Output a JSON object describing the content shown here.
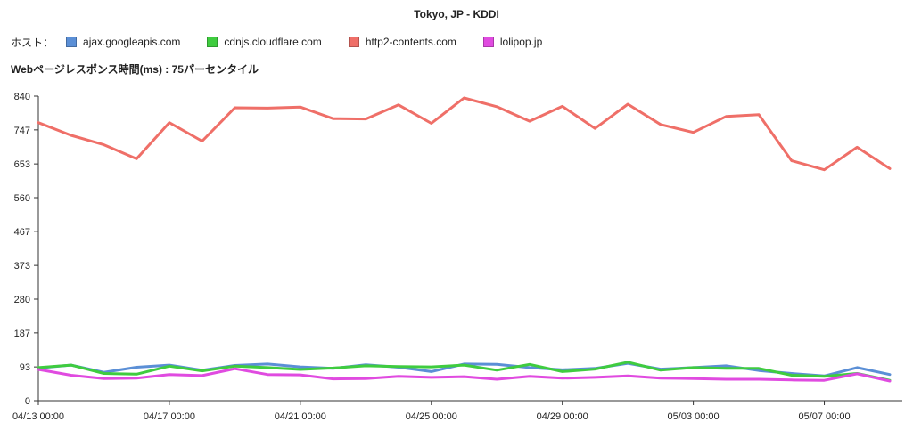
{
  "chart_data": {
    "type": "line",
    "title": "Tokyo, JP - KDDI",
    "legend_prefix": "ホスト：",
    "ylabel": "Webページレスポンス時間(ms) : 75パーセンタイル",
    "xlabel": "",
    "ylim": [
      0,
      840
    ],
    "yticks": [
      0,
      93,
      187,
      280,
      373,
      467,
      560,
      653,
      747,
      840
    ],
    "xticks": [
      "04/13 00:00",
      "04/17 00:00",
      "04/21 00:00",
      "04/25 00:00",
      "04/29 00:00",
      "05/03 00:00",
      "05/07 00:00"
    ],
    "xtick_days": [
      0,
      4,
      8,
      12,
      16,
      20,
      24
    ],
    "x": [
      "04/13",
      "04/14",
      "04/15",
      "04/16",
      "04/17",
      "04/18",
      "04/19",
      "04/20",
      "04/21",
      "04/22",
      "04/23",
      "04/24",
      "04/25",
      "04/26",
      "04/27",
      "04/28",
      "04/29",
      "04/30",
      "05/01",
      "05/02",
      "05/03",
      "05/04",
      "05/05",
      "05/06",
      "05/07",
      "05/08",
      "05/09"
    ],
    "grid": false,
    "legend_position": "top-left",
    "series": [
      {
        "name": "ajax.googleapis.com",
        "color": "#5b8fd6",
        "values": [
          90,
          98,
          78,
          92,
          98,
          84,
          97,
          101,
          93,
          89,
          99,
          92,
          80,
          101,
          100,
          91,
          85,
          89,
          103,
          87,
          91,
          96,
          83,
          75,
          68,
          91,
          72
        ]
      },
      {
        "name": "cdnjs.cloudflare.com",
        "color": "#3fcc3f",
        "values": [
          91,
          98,
          75,
          73,
          95,
          82,
          95,
          91,
          86,
          90,
          96,
          94,
          93,
          98,
          84,
          100,
          80,
          87,
          106,
          84,
          91,
          89,
          89,
          70,
          67,
          75,
          56
        ]
      },
      {
        "name": "http2-contents.com",
        "color": "#ef6f68",
        "values": [
          767,
          732,
          706,
          667,
          767,
          716,
          808,
          807,
          810,
          778,
          777,
          816,
          765,
          835,
          811,
          771,
          812,
          751,
          818,
          762,
          740,
          784,
          789,
          662,
          637,
          699,
          640
        ]
      },
      {
        "name": "lolipop.jp",
        "color": "#e04be0",
        "values": [
          86,
          70,
          61,
          62,
          72,
          69,
          88,
          72,
          71,
          60,
          61,
          67,
          64,
          66,
          59,
          67,
          62,
          64,
          68,
          62,
          61,
          59,
          59,
          57,
          56,
          74,
          54
        ]
      }
    ]
  }
}
